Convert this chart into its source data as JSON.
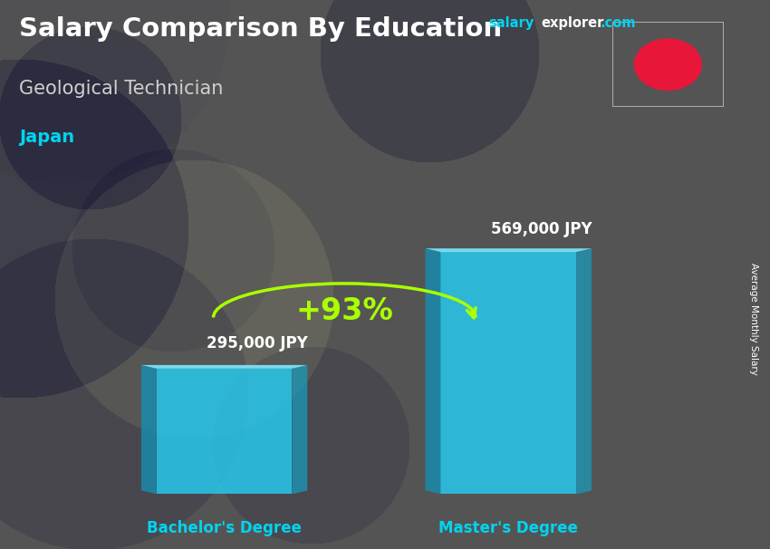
{
  "title_main": "Salary Comparison By Education",
  "title_salary": "salary",
  "title_explorer": "explorer",
  "title_com": ".com",
  "subtitle": "Geological Technician",
  "country": "Japan",
  "categories": [
    "Bachelor's Degree",
    "Master's Degree"
  ],
  "values": [
    295000,
    569000
  ],
  "value_labels": [
    "295,000 JPY",
    "569,000 JPY"
  ],
  "pct_change": "+93%",
  "bar_face_color": "#29c4e8",
  "bar_left_color": "#1a8aaa",
  "bar_right_color": "#1a9abb",
  "bar_top_color": "#7de8ff",
  "ylabel_rotated": "Average Monthly Salary",
  "bg_color": "#555555",
  "title_color": "#ffffff",
  "subtitle_color": "#d0d0d0",
  "country_color": "#00d4f0",
  "salary_color": "#00d4f0",
  "explorer_color": "#ffffff",
  "com_color": "#00d4f0",
  "pct_color": "#aaff00",
  "arrow_color": "#aaff00",
  "label_color": "#ffffff",
  "xlabel_color": "#00d4f0",
  "flag_circle_color": "#e8173a",
  "flag_bg": "#ffffff"
}
